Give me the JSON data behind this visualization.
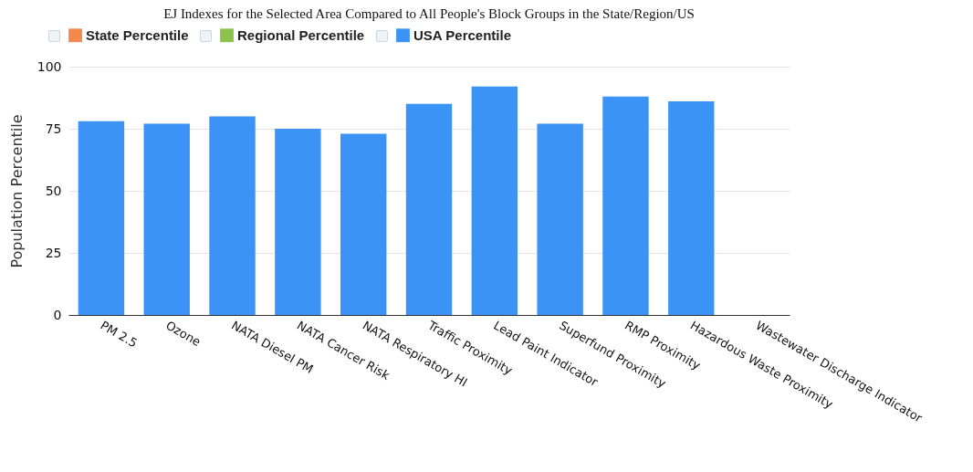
{
  "chart_data": {
    "type": "bar",
    "title": "EJ Indexes for the Selected Area Compared to All People's Block Groups in the State/Region/US",
    "ylabel": "Population Percentile",
    "categories": [
      "PM 2.5",
      "Ozone",
      "NATA Diesel PM",
      "NATA Cancer Risk",
      "NATA Respiratory HI",
      "Traffic Proximity",
      "Lead Paint Indicator",
      "Superfund Proximity",
      "RMP Proximity",
      "Hazardous Waste Proximity",
      "Wastewater Discharge Indicator"
    ],
    "series": [
      {
        "name": "State Percentile",
        "color": "#f4894f",
        "values": [
          null,
          null,
          null,
          null,
          null,
          null,
          null,
          null,
          null,
          null,
          null
        ]
      },
      {
        "name": "Regional Percentile",
        "color": "#8bc34a",
        "values": [
          null,
          null,
          null,
          null,
          null,
          null,
          null,
          null,
          null,
          null,
          null
        ]
      },
      {
        "name": "USA Percentile",
        "color": "#3b94f5",
        "values": [
          78,
          77,
          80,
          75,
          73,
          85,
          92,
          77,
          88,
          86,
          null
        ]
      }
    ],
    "ylim": [
      0,
      100
    ],
    "yticks": [
      0,
      25,
      50,
      75,
      100
    ],
    "grid": "y",
    "legend": "top"
  }
}
